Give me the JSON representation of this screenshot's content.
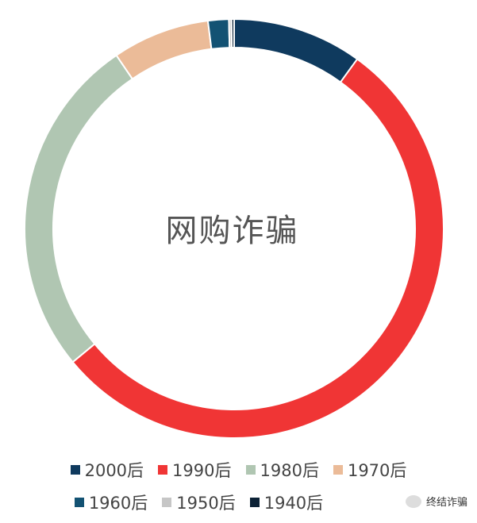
{
  "chart_data": {
    "type": "pie",
    "title": "网购诈骗",
    "categories": [
      "2000后",
      "1990后",
      "1980后",
      "1970后",
      "1960后",
      "1950后",
      "1940后"
    ],
    "values": [
      10.0,
      54.0,
      26.5,
      7.5,
      1.6,
      0.2,
      0.2
    ],
    "colors": [
      "#0f3a5e",
      "#f03535",
      "#b0c6b2",
      "#ebbb98",
      "#135273",
      "#c6c6c6",
      "#0c2236"
    ],
    "legend_position": "bottom"
  },
  "watermark": "终结诈骗"
}
